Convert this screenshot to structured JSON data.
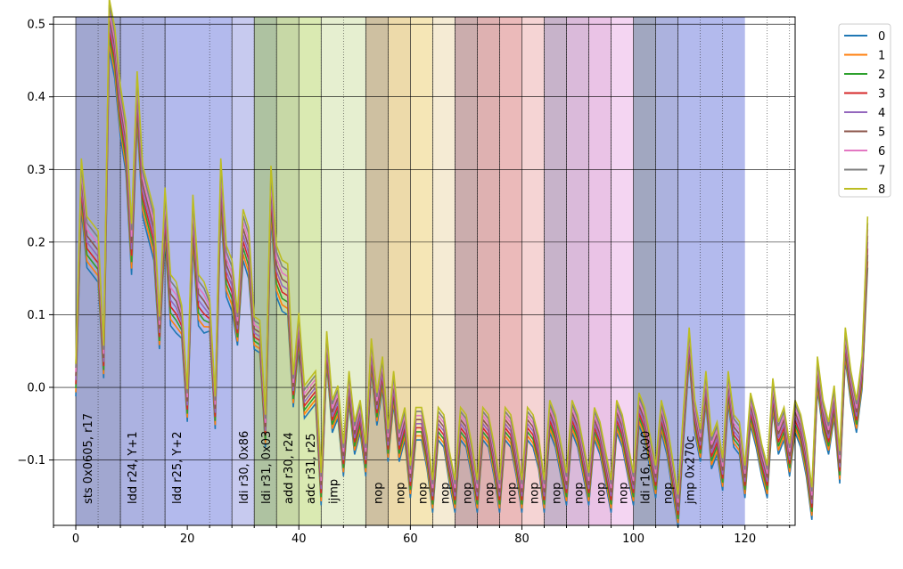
{
  "chart_data": {
    "type": "line",
    "xlim": [
      -4,
      129
    ],
    "ylim": [
      -0.19,
      0.51
    ],
    "xticks": [
      0,
      20,
      40,
      60,
      80,
      100,
      120
    ],
    "xtick_labels": [
      "0",
      "20",
      "40",
      "60",
      "80",
      "100",
      "120"
    ],
    "yticks": [
      -0.1,
      0.0,
      0.1,
      0.2,
      0.3,
      0.4,
      0.5
    ],
    "ytick_labels": [
      "−0.1",
      "0.0",
      "0.1",
      "0.2",
      "0.3",
      "0.4",
      "0.5"
    ],
    "grid": "on",
    "legend_placement": "outside-top-right",
    "legend": [
      "0",
      "1",
      "2",
      "3",
      "4",
      "5",
      "6",
      "7",
      "8"
    ],
    "series_colors": [
      "#1f77b4",
      "#ff7f0e",
      "#2ca02c",
      "#d62728",
      "#9467bd",
      "#8c564b",
      "#e377c2",
      "#7f7f7f",
      "#bcbd22"
    ],
    "instructions": [
      {
        "label": "sts 0x0605, r17",
        "start": 0,
        "end": 8,
        "color": "#1f2e8f"
      },
      {
        "label": "ldd r24, Y+1",
        "start": 8,
        "end": 16,
        "color": "#3a48b8"
      },
      {
        "label": "ldd r25, Y+2",
        "start": 16,
        "end": 28,
        "color": "#4a5bd4"
      },
      {
        "label": "ldi r30, 0x86",
        "start": 28,
        "end": 32,
        "color": "#7a80d8"
      },
      {
        "label": "ldi r31, 0x03",
        "start": 32,
        "end": 36,
        "color": "#3d6e1e"
      },
      {
        "label": "add r30, r24",
        "start": 36,
        "end": 40,
        "color": "#7aa22c"
      },
      {
        "label": "adc r31, r25",
        "start": 40,
        "end": 44,
        "color": "#a8cc48"
      },
      {
        "label": "ijmp",
        "start": 44,
        "end": 52,
        "color": "#c4d890"
      },
      {
        "label": "nop",
        "start": 52,
        "end": 56,
        "color": "#8a6820"
      },
      {
        "label": "nop",
        "start": 56,
        "end": 60,
        "color": "#d4a834"
      },
      {
        "label": "nop",
        "start": 60,
        "end": 64,
        "color": "#e8c450"
      },
      {
        "label": "nop",
        "start": 64,
        "end": 68,
        "color": "#e8d098"
      },
      {
        "label": "nop",
        "start": 68,
        "end": 72,
        "color": "#843c3c"
      },
      {
        "label": "nop",
        "start": 72,
        "end": 76,
        "color": "#b04444"
      },
      {
        "label": "nop",
        "start": 76,
        "end": 80,
        "color": "#d05a5a"
      },
      {
        "label": "nop",
        "start": 80,
        "end": 84,
        "color": "#e89898"
      },
      {
        "label": "nop",
        "start": 84,
        "end": 88,
        "color": "#7a4a80"
      },
      {
        "label": "nop",
        "start": 88,
        "end": 92,
        "color": "#a85aa8"
      },
      {
        "label": "nop",
        "start": 92,
        "end": 96,
        "color": "#cc70c4"
      },
      {
        "label": "nop",
        "start": 96,
        "end": 100,
        "color": "#e49ae0"
      },
      {
        "label": "ldi r16, 0x00",
        "start": 100,
        "end": 104,
        "color": "#1f2e6a"
      },
      {
        "label": "nop",
        "start": 104,
        "end": 108,
        "color": "#3a48b0"
      },
      {
        "label": "jmp 0x270c",
        "start": 108,
        "end": 120,
        "color": "#4a5bd4"
      }
    ],
    "base_values": [
      0.01,
      0.28,
      0.2,
      0.19,
      0.18,
      0.035,
      0.5,
      0.46,
      0.38,
      0.33,
      0.19,
      0.4,
      0.27,
      0.24,
      0.21,
      0.075,
      0.24,
      0.12,
      0.11,
      0.09,
      -0.025,
      0.23,
      0.12,
      0.11,
      0.1,
      -0.035,
      0.28,
      0.16,
      0.14,
      0.08,
      0.21,
      0.185,
      0.075,
      0.07,
      -0.06,
      0.27,
      0.16,
      0.14,
      0.135,
      -0.005,
      0.08,
      -0.02,
      -0.01,
      0.0,
      -0.14,
      0.055,
      -0.04,
      -0.02,
      -0.1,
      0.0,
      -0.07,
      -0.04,
      -0.1,
      0.045,
      -0.03,
      0.02,
      -0.08,
      0.0,
      -0.08,
      -0.05,
      -0.13,
      -0.05,
      -0.05,
      -0.09,
      -0.15,
      -0.05,
      -0.06,
      -0.11,
      -0.15,
      -0.05,
      -0.06,
      -0.1,
      -0.15,
      -0.05,
      -0.06,
      -0.1,
      -0.15,
      -0.05,
      -0.06,
      -0.1,
      -0.15,
      -0.05,
      -0.06,
      -0.09,
      -0.15,
      -0.04,
      -0.06,
      -0.1,
      -0.14,
      -0.04,
      -0.06,
      -0.1,
      -0.14,
      -0.05,
      -0.07,
      -0.11,
      -0.15,
      -0.04,
      -0.06,
      -0.1,
      -0.14,
      -0.03,
      -0.05,
      -0.09,
      -0.13,
      -0.04,
      -0.07,
      -0.12,
      -0.17,
      -0.05,
      0.06,
      -0.04,
      -0.08,
      0.0,
      -0.09,
      -0.07,
      -0.12,
      0.0,
      -0.06,
      -0.07,
      -0.13,
      -0.03,
      -0.06,
      -0.1,
      -0.13,
      -0.01,
      -0.07,
      -0.05,
      -0.1,
      -0.04,
      -0.06,
      -0.1,
      -0.16,
      0.02,
      -0.04,
      -0.07,
      -0.02,
      -0.11,
      0.06,
      0.0,
      -0.04,
      0.02,
      0.2
    ]
  }
}
